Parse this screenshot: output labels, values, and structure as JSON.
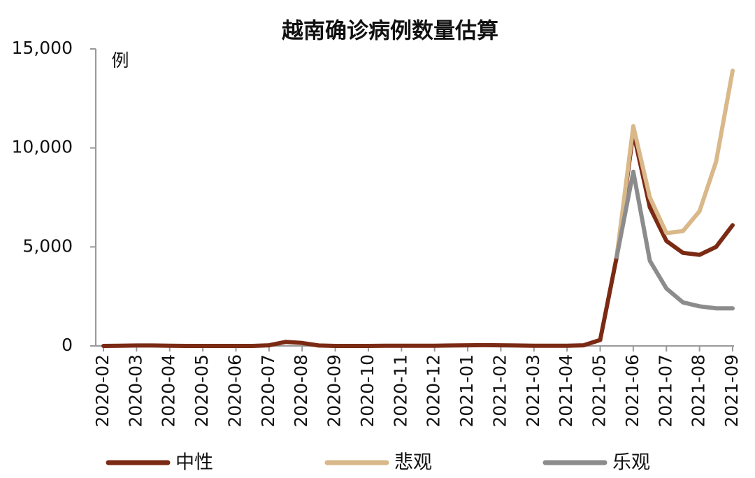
{
  "chart_data": {
    "type": "line",
    "title": "越南确诊病例数量估算",
    "y_label": "例",
    "categories": [
      "2020-02",
      null,
      "2020-03",
      null,
      "2020-04",
      null,
      "2020-05",
      null,
      "2020-06",
      null,
      "2020-07",
      null,
      "2020-08",
      null,
      "2020-09",
      null,
      "2020-10",
      null,
      "2020-11",
      null,
      "2020-12",
      null,
      "2021-01",
      null,
      "2021-02",
      null,
      "2021-03",
      null,
      "2021-04",
      null,
      "2021-05",
      null,
      "2021-06",
      null,
      "2021-07",
      null,
      "2021-08",
      null,
      "2021-09"
    ],
    "series": [
      {
        "name": "中性",
        "color": "#7b2a14",
        "values": [
          0,
          10,
          20,
          20,
          10,
          0,
          0,
          0,
          0,
          0,
          30,
          200,
          150,
          20,
          0,
          0,
          0,
          10,
          10,
          10,
          10,
          20,
          30,
          40,
          30,
          20,
          10,
          10,
          10,
          30,
          300,
          4500,
          10800,
          7000,
          5300,
          4700,
          4600,
          5000,
          6100
        ]
      },
      {
        "name": "悲观",
        "color": "#d9b88a",
        "values": [
          null,
          null,
          null,
          null,
          null,
          null,
          null,
          null,
          null,
          null,
          null,
          null,
          null,
          null,
          null,
          null,
          null,
          null,
          null,
          null,
          null,
          null,
          null,
          null,
          null,
          null,
          null,
          null,
          null,
          null,
          null,
          4500,
          11100,
          7500,
          5700,
          5800,
          6800,
          9300,
          13900
        ]
      },
      {
        "name": "乐观",
        "color": "#8c8c8c",
        "values": [
          null,
          null,
          null,
          null,
          null,
          null,
          null,
          null,
          null,
          null,
          null,
          null,
          null,
          null,
          null,
          null,
          null,
          null,
          null,
          null,
          null,
          null,
          null,
          null,
          null,
          null,
          null,
          null,
          null,
          null,
          null,
          4500,
          8800,
          4300,
          2900,
          2200,
          2000,
          1900,
          1900
        ]
      }
    ],
    "ylim": [
      0,
      15000
    ],
    "yticks": [
      0,
      {
        "value": 5000,
        "label": "5,000"
      },
      {
        "value": 10000,
        "label": "10,000"
      },
      {
        "value": 15000,
        "label": "15,000"
      }
    ]
  }
}
